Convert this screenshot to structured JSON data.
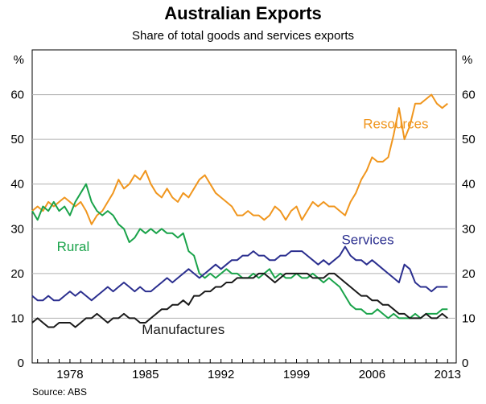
{
  "chart_data": {
    "type": "line",
    "title": "Australian Exports",
    "subtitle": "Share of total goods and services exports",
    "source": "Source: ABS",
    "y_unit_left": "%",
    "y_unit_right": "%",
    "ylim": [
      0,
      70
    ],
    "yticks": [
      0,
      10,
      20,
      30,
      40,
      50,
      60
    ],
    "xlim": [
      1974.5,
      2013.8
    ],
    "xticks": [
      1978,
      1985,
      1992,
      1999,
      2006,
      2013
    ],
    "series": [
      {
        "name": "Resources",
        "color": "#F0961E",
        "label_at": [
          2008.2,
          52.5
        ],
        "x": [
          1974.5,
          1975,
          1975.5,
          1976,
          1976.5,
          1977,
          1977.5,
          1978,
          1978.5,
          1979,
          1979.5,
          1980,
          1980.5,
          1981,
          1981.5,
          1982,
          1982.5,
          1983,
          1983.5,
          1984,
          1984.5,
          1985,
          1985.5,
          1986,
          1986.5,
          1987,
          1987.5,
          1988,
          1988.5,
          1989,
          1989.5,
          1990,
          1990.5,
          1991,
          1991.5,
          1992,
          1992.5,
          1993,
          1993.5,
          1994,
          1994.5,
          1995,
          1995.5,
          1996,
          1996.5,
          1997,
          1997.5,
          1998,
          1998.5,
          1999,
          1999.5,
          2000,
          2000.5,
          2001,
          2001.5,
          2002,
          2002.5,
          2003,
          2003.5,
          2004,
          2004.5,
          2005,
          2005.5,
          2006,
          2006.5,
          2007,
          2007.5,
          2008,
          2008.5,
          2009,
          2009.5,
          2010,
          2010.5,
          2011,
          2011.5,
          2012,
          2012.5,
          2013
        ],
        "values": [
          34,
          35,
          34,
          36,
          35,
          36,
          37,
          36,
          35,
          36,
          34,
          31,
          33,
          34,
          36,
          38,
          41,
          39,
          40,
          42,
          41,
          43,
          40,
          38,
          37,
          39,
          37,
          36,
          38,
          37,
          39,
          41,
          42,
          40,
          38,
          37,
          36,
          35,
          33,
          33,
          34,
          33,
          33,
          32,
          33,
          35,
          34,
          32,
          34,
          35,
          32,
          34,
          36,
          35,
          36,
          35,
          35,
          34,
          33,
          36,
          38,
          41,
          43,
          46,
          45,
          45,
          46,
          51,
          57,
          50,
          53,
          58,
          58,
          59,
          60,
          58,
          57,
          58
        ]
      },
      {
        "name": "Rural",
        "color": "#1AA34A",
        "label_at": [
          1978.3,
          25
        ],
        "x": [
          1974.5,
          1975,
          1975.5,
          1976,
          1976.5,
          1977,
          1977.5,
          1978,
          1978.5,
          1979,
          1979.5,
          1980,
          1980.5,
          1981,
          1981.5,
          1982,
          1982.5,
          1983,
          1983.5,
          1984,
          1984.5,
          1985,
          1985.5,
          1986,
          1986.5,
          1987,
          1987.5,
          1988,
          1988.5,
          1989,
          1989.5,
          1990,
          1990.5,
          1991,
          1991.5,
          1992,
          1992.5,
          1993,
          1993.5,
          1994,
          1994.5,
          1995,
          1995.5,
          1996,
          1996.5,
          1997,
          1997.5,
          1998,
          1998.5,
          1999,
          1999.5,
          2000,
          2000.5,
          2001,
          2001.5,
          2002,
          2002.5,
          2003,
          2003.5,
          2004,
          2004.5,
          2005,
          2005.5,
          2006,
          2006.5,
          2007,
          2007.5,
          2008,
          2008.5,
          2009,
          2009.5,
          2010,
          2010.5,
          2011,
          2011.5,
          2012,
          2012.5,
          2013
        ],
        "values": [
          34,
          32,
          35,
          34,
          36,
          34,
          35,
          33,
          36,
          38,
          40,
          36,
          34,
          33,
          34,
          33,
          31,
          30,
          27,
          28,
          30,
          29,
          30,
          29,
          30,
          29,
          29,
          28,
          29,
          25,
          24,
          20,
          19,
          20,
          19,
          20,
          21,
          20,
          20,
          19,
          19,
          20,
          19,
          20,
          21,
          19,
          20,
          19,
          19,
          20,
          19,
          19,
          20,
          19,
          18,
          19,
          18,
          17,
          15,
          13,
          12,
          12,
          11,
          11,
          12,
          11,
          10,
          11,
          10,
          10,
          10,
          11,
          10,
          11,
          11,
          11,
          12,
          12
        ]
      },
      {
        "name": "Services",
        "color": "#2B2F8F",
        "label_at": [
          2005.6,
          26.5
        ],
        "x": [
          1974.5,
          1975,
          1975.5,
          1976,
          1976.5,
          1977,
          1977.5,
          1978,
          1978.5,
          1979,
          1979.5,
          1980,
          1980.5,
          1981,
          1981.5,
          1982,
          1982.5,
          1983,
          1983.5,
          1984,
          1984.5,
          1985,
          1985.5,
          1986,
          1986.5,
          1987,
          1987.5,
          1988,
          1988.5,
          1989,
          1989.5,
          1990,
          1990.5,
          1991,
          1991.5,
          1992,
          1992.5,
          1993,
          1993.5,
          1994,
          1994.5,
          1995,
          1995.5,
          1996,
          1996.5,
          1997,
          1997.5,
          1998,
          1998.5,
          1999,
          1999.5,
          2000,
          2000.5,
          2001,
          2001.5,
          2002,
          2002.5,
          2003,
          2003.5,
          2004,
          2004.5,
          2005,
          2005.5,
          2006,
          2006.5,
          2007,
          2007.5,
          2008,
          2008.5,
          2009,
          2009.5,
          2010,
          2010.5,
          2011,
          2011.5,
          2012,
          2012.5,
          2013
        ],
        "values": [
          15,
          14,
          14,
          15,
          14,
          14,
          15,
          16,
          15,
          16,
          15,
          14,
          15,
          16,
          17,
          16,
          17,
          18,
          17,
          16,
          17,
          16,
          16,
          17,
          18,
          19,
          18,
          19,
          20,
          21,
          20,
          19,
          20,
          21,
          22,
          21,
          22,
          23,
          23,
          24,
          24,
          25,
          24,
          24,
          23,
          23,
          24,
          24,
          25,
          25,
          25,
          24,
          23,
          22,
          23,
          22,
          23,
          24,
          26,
          24,
          23,
          23,
          22,
          23,
          22,
          21,
          20,
          19,
          18,
          22,
          21,
          18,
          17,
          17,
          16,
          17,
          17,
          17
        ]
      },
      {
        "name": "Manufactures",
        "color": "#1A1A1A",
        "label_at": [
          1988.5,
          6.5
        ],
        "x": [
          1974.5,
          1975,
          1975.5,
          1976,
          1976.5,
          1977,
          1977.5,
          1978,
          1978.5,
          1979,
          1979.5,
          1980,
          1980.5,
          1981,
          1981.5,
          1982,
          1982.5,
          1983,
          1983.5,
          1984,
          1984.5,
          1985,
          1985.5,
          1986,
          1986.5,
          1987,
          1987.5,
          1988,
          1988.5,
          1989,
          1989.5,
          1990,
          1990.5,
          1991,
          1991.5,
          1992,
          1992.5,
          1993,
          1993.5,
          1994,
          1994.5,
          1995,
          1995.5,
          1996,
          1996.5,
          1997,
          1997.5,
          1998,
          1998.5,
          1999,
          1999.5,
          2000,
          2000.5,
          2001,
          2001.5,
          2002,
          2002.5,
          2003,
          2003.5,
          2004,
          2004.5,
          2005,
          2005.5,
          2006,
          2006.5,
          2007,
          2007.5,
          2008,
          2008.5,
          2009,
          2009.5,
          2010,
          2010.5,
          2011,
          2011.5,
          2012,
          2012.5,
          2013
        ],
        "values": [
          9,
          10,
          9,
          8,
          8,
          9,
          9,
          9,
          8,
          9,
          10,
          10,
          11,
          10,
          9,
          10,
          10,
          11,
          10,
          10,
          9,
          9,
          10,
          11,
          12,
          12,
          13,
          13,
          14,
          13,
          15,
          15,
          16,
          16,
          17,
          17,
          18,
          18,
          19,
          19,
          19,
          19,
          20,
          20,
          19,
          18,
          19,
          20,
          20,
          20,
          20,
          20,
          19,
          19,
          19,
          20,
          20,
          19,
          18,
          17,
          16,
          15,
          15,
          14,
          14,
          13,
          13,
          12,
          11,
          11,
          10,
          10,
          10,
          11,
          10,
          10,
          11,
          10
        ]
      }
    ]
  }
}
